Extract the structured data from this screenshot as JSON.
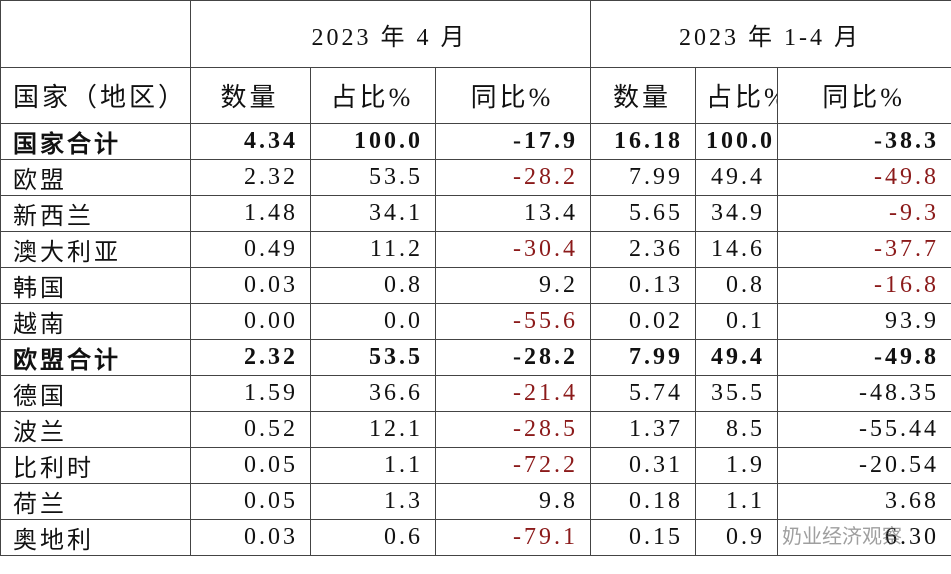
{
  "table": {
    "header": [
      "2023 年 4 月",
      "2023 年 1-4 月"
    ],
    "columns": [
      "国家（地区）",
      "数量",
      "占比%",
      "同比%",
      "数量",
      "占比%",
      "同比%"
    ],
    "rows": [
      {
        "cells": [
          "国家合计",
          "4.34",
          "100.0",
          "-17.9",
          "16.18",
          "100.0",
          "-38.3"
        ],
        "bold": true,
        "red": []
      },
      {
        "cells": [
          "欧盟",
          "2.32",
          "53.5",
          "-28.2",
          "7.99",
          "49.4",
          "-49.8"
        ],
        "bold": false,
        "red": [
          3,
          6
        ]
      },
      {
        "cells": [
          "新西兰",
          "1.48",
          "34.1",
          "13.4",
          "5.65",
          "34.9",
          "-9.3"
        ],
        "bold": false,
        "red": [
          6
        ]
      },
      {
        "cells": [
          "澳大利亚",
          "0.49",
          "11.2",
          "-30.4",
          "2.36",
          "14.6",
          "-37.7"
        ],
        "bold": false,
        "red": [
          3,
          6
        ]
      },
      {
        "cells": [
          "韩国",
          "0.03",
          "0.8",
          "9.2",
          "0.13",
          "0.8",
          "-16.8"
        ],
        "bold": false,
        "red": [
          6
        ]
      },
      {
        "cells": [
          "越南",
          "0.00",
          "0.0",
          "-55.6",
          "0.02",
          "0.1",
          "93.9"
        ],
        "bold": false,
        "red": [
          3
        ]
      },
      {
        "cells": [
          "欧盟合计",
          "2.32",
          "53.5",
          "-28.2",
          "7.99",
          "49.4",
          "-49.8"
        ],
        "bold": true,
        "red": []
      },
      {
        "cells": [
          "德国",
          "1.59",
          "36.6",
          "-21.4",
          "5.74",
          "35.5",
          "-48.35"
        ],
        "bold": false,
        "red": [
          3
        ]
      },
      {
        "cells": [
          "波兰",
          "0.52",
          "12.1",
          "-28.5",
          "1.37",
          "8.5",
          "-55.44"
        ],
        "bold": false,
        "red": [
          3
        ]
      },
      {
        "cells": [
          "比利时",
          "0.05",
          "1.1",
          "-72.2",
          "0.31",
          "1.9",
          "-20.54"
        ],
        "bold": false,
        "red": [
          3
        ]
      },
      {
        "cells": [
          "荷兰",
          "0.05",
          "1.3",
          "9.8",
          "0.18",
          "1.1",
          "3.68"
        ],
        "bold": false,
        "red": []
      },
      {
        "cells": [
          "奥地利",
          "0.03",
          "0.6",
          "-79.1",
          "0.15",
          "0.9",
          "6.30"
        ],
        "bold": false,
        "red": [
          3
        ]
      }
    ]
  },
  "watermark": "奶业经济观察"
}
